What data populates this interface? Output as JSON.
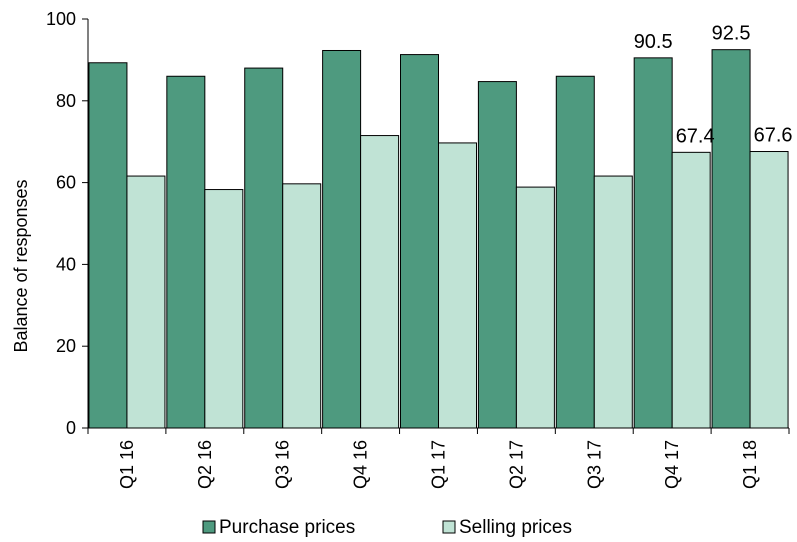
{
  "chart_data": {
    "type": "bar",
    "title": "",
    "xlabel": "",
    "ylabel": "Balance of responses",
    "ylim": [
      0,
      100
    ],
    "yticks": [
      "0",
      "20",
      "40",
      "60",
      "80",
      "100"
    ],
    "categories": [
      "Q1 16",
      "Q2 16",
      "Q3 16",
      "Q4 16",
      "Q1 17",
      "Q2 17",
      "Q3 17",
      "Q4 17",
      "Q1 18"
    ],
    "series": [
      {
        "name": "Purchase prices",
        "color": "#4e9a7f",
        "values": [
          89.3,
          86.0,
          88.0,
          92.3,
          91.3,
          84.7,
          86.0,
          90.5,
          92.5
        ]
      },
      {
        "name": "Selling prices",
        "color": "#c0e3d5",
        "values": [
          61.6,
          58.3,
          59.7,
          71.5,
          69.7,
          58.9,
          61.6,
          67.4,
          67.6
        ]
      }
    ],
    "data_labels": [
      {
        "series": 0,
        "index": 7,
        "text": "90.5"
      },
      {
        "series": 1,
        "index": 7,
        "text": "67.4"
      },
      {
        "series": 0,
        "index": 8,
        "text": "92.5"
      },
      {
        "series": 1,
        "index": 8,
        "text": "67.6"
      }
    ],
    "grid": false,
    "legend_position": "bottom"
  }
}
